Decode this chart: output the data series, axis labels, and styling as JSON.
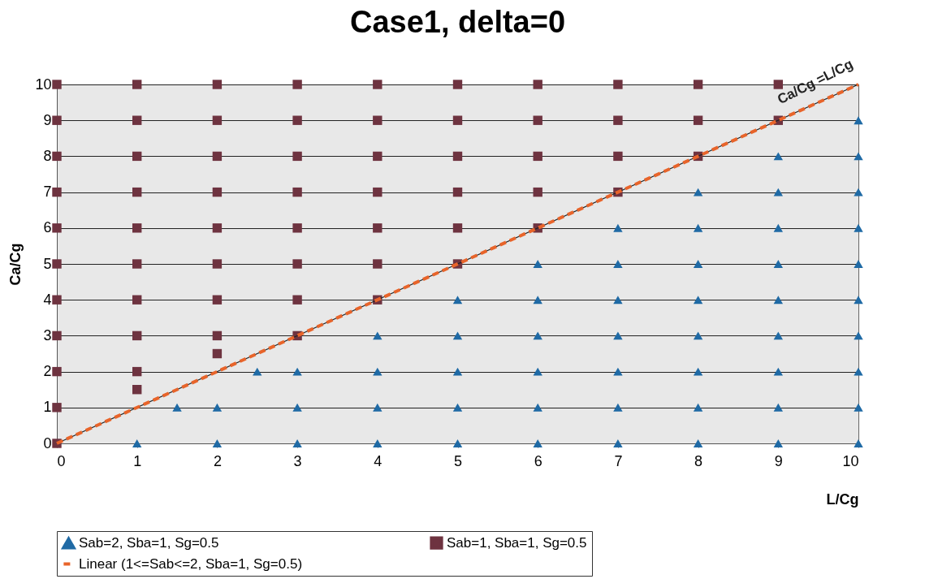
{
  "chart_data": {
    "type": "scatter",
    "title": "Case1, delta=0",
    "xlabel": "L/Cg",
    "ylabel": "Ca/Cg",
    "xlim": [
      0,
      10
    ],
    "xticks": [
      0,
      1,
      2,
      3,
      4,
      5,
      6,
      7,
      8,
      9,
      10
    ],
    "ylim": [
      0,
      10
    ],
    "yticks": [
      0,
      1,
      2,
      3,
      4,
      5,
      6,
      7,
      8,
      9,
      10
    ],
    "grid": "y",
    "legend": "bottom",
    "annotations": [
      {
        "text": "Ca/Cg =L/Cg",
        "x": 9.5,
        "y": 9.5
      }
    ],
    "series": [
      {
        "name": "Sab=2, Sba=1, Sg=0.5",
        "color": "#1f6aa5",
        "marker": "triangle",
        "x": [
          1,
          1.5,
          2,
          2,
          2.5,
          3,
          3,
          3,
          4,
          4,
          4,
          4,
          5,
          5,
          5,
          5,
          5,
          6,
          6,
          6,
          6,
          6,
          6,
          7,
          7,
          7,
          7,
          7,
          7,
          7,
          8,
          8,
          8,
          8,
          8,
          8,
          8,
          8,
          9,
          9,
          9,
          9,
          9,
          9,
          9,
          9,
          9,
          10,
          10,
          10,
          10,
          10,
          10,
          10,
          10,
          10,
          10
        ],
        "values": [
          0,
          1,
          0,
          1,
          2,
          0,
          1,
          2,
          0,
          1,
          2,
          3,
          0,
          1,
          2,
          3,
          4,
          0,
          1,
          2,
          3,
          4,
          5,
          0,
          1,
          2,
          3,
          4,
          5,
          6,
          0,
          1,
          2,
          3,
          4,
          5,
          6,
          7,
          0,
          1,
          2,
          3,
          4,
          5,
          6,
          7,
          8,
          0,
          1,
          2,
          3,
          4,
          5,
          6,
          7,
          8,
          9
        ]
      },
      {
        "name": "Sab=1, Sba=1, Sg=0.5",
        "color": "#6e3340",
        "marker": "square",
        "x": [
          0,
          0,
          0,
          0,
          0,
          0,
          0,
          0,
          0,
          0,
          0,
          1,
          1,
          1,
          1,
          1,
          1,
          1,
          1,
          1,
          1,
          2,
          2,
          2,
          2,
          2,
          2,
          2,
          2,
          2,
          3,
          3,
          3,
          3,
          3,
          3,
          3,
          3,
          4,
          4,
          4,
          4,
          4,
          4,
          4,
          5,
          5,
          5,
          5,
          5,
          5,
          6,
          6,
          6,
          6,
          6,
          7,
          7,
          7,
          7,
          8,
          8,
          8,
          9,
          9
        ],
        "values": [
          0,
          1,
          2,
          3,
          4,
          5,
          6,
          7,
          8,
          9,
          10,
          1.5,
          2,
          3,
          4,
          5,
          6,
          7,
          8,
          9,
          10,
          2.5,
          3,
          4,
          5,
          6,
          7,
          8,
          9,
          10,
          3,
          4,
          5,
          6,
          7,
          8,
          9,
          10,
          4,
          5,
          6,
          7,
          8,
          9,
          10,
          5,
          6,
          7,
          8,
          9,
          10,
          6,
          7,
          8,
          9,
          10,
          7,
          8,
          9,
          10,
          8,
          9,
          10,
          9,
          10
        ]
      },
      {
        "type": "line",
        "color": "#222222",
        "line_style": "solid",
        "marker": "none",
        "x": [
          0,
          10
        ],
        "values": [
          0,
          10
        ]
      },
      {
        "name": "Linear (1<=Sab<=2, Sba=1, Sg=0.5)",
        "type": "line",
        "color": "#e8642a",
        "line_style": "dashed",
        "marker": "none",
        "x": [
          0,
          10
        ],
        "values": [
          0,
          10
        ]
      }
    ]
  }
}
